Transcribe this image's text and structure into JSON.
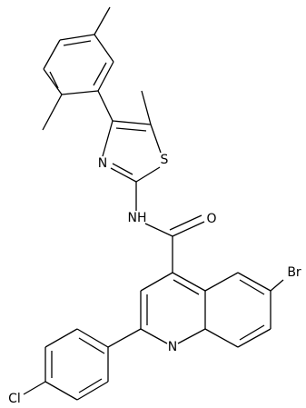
{
  "atoms": [
    {
      "label": "S"
    },
    {
      "label": "N"
    },
    {
      "label": "NH"
    },
    {
      "label": "O"
    },
    {
      "label": "Br"
    },
    {
      "label": "N"
    },
    {
      "label": "Cl"
    }
  ]
}
